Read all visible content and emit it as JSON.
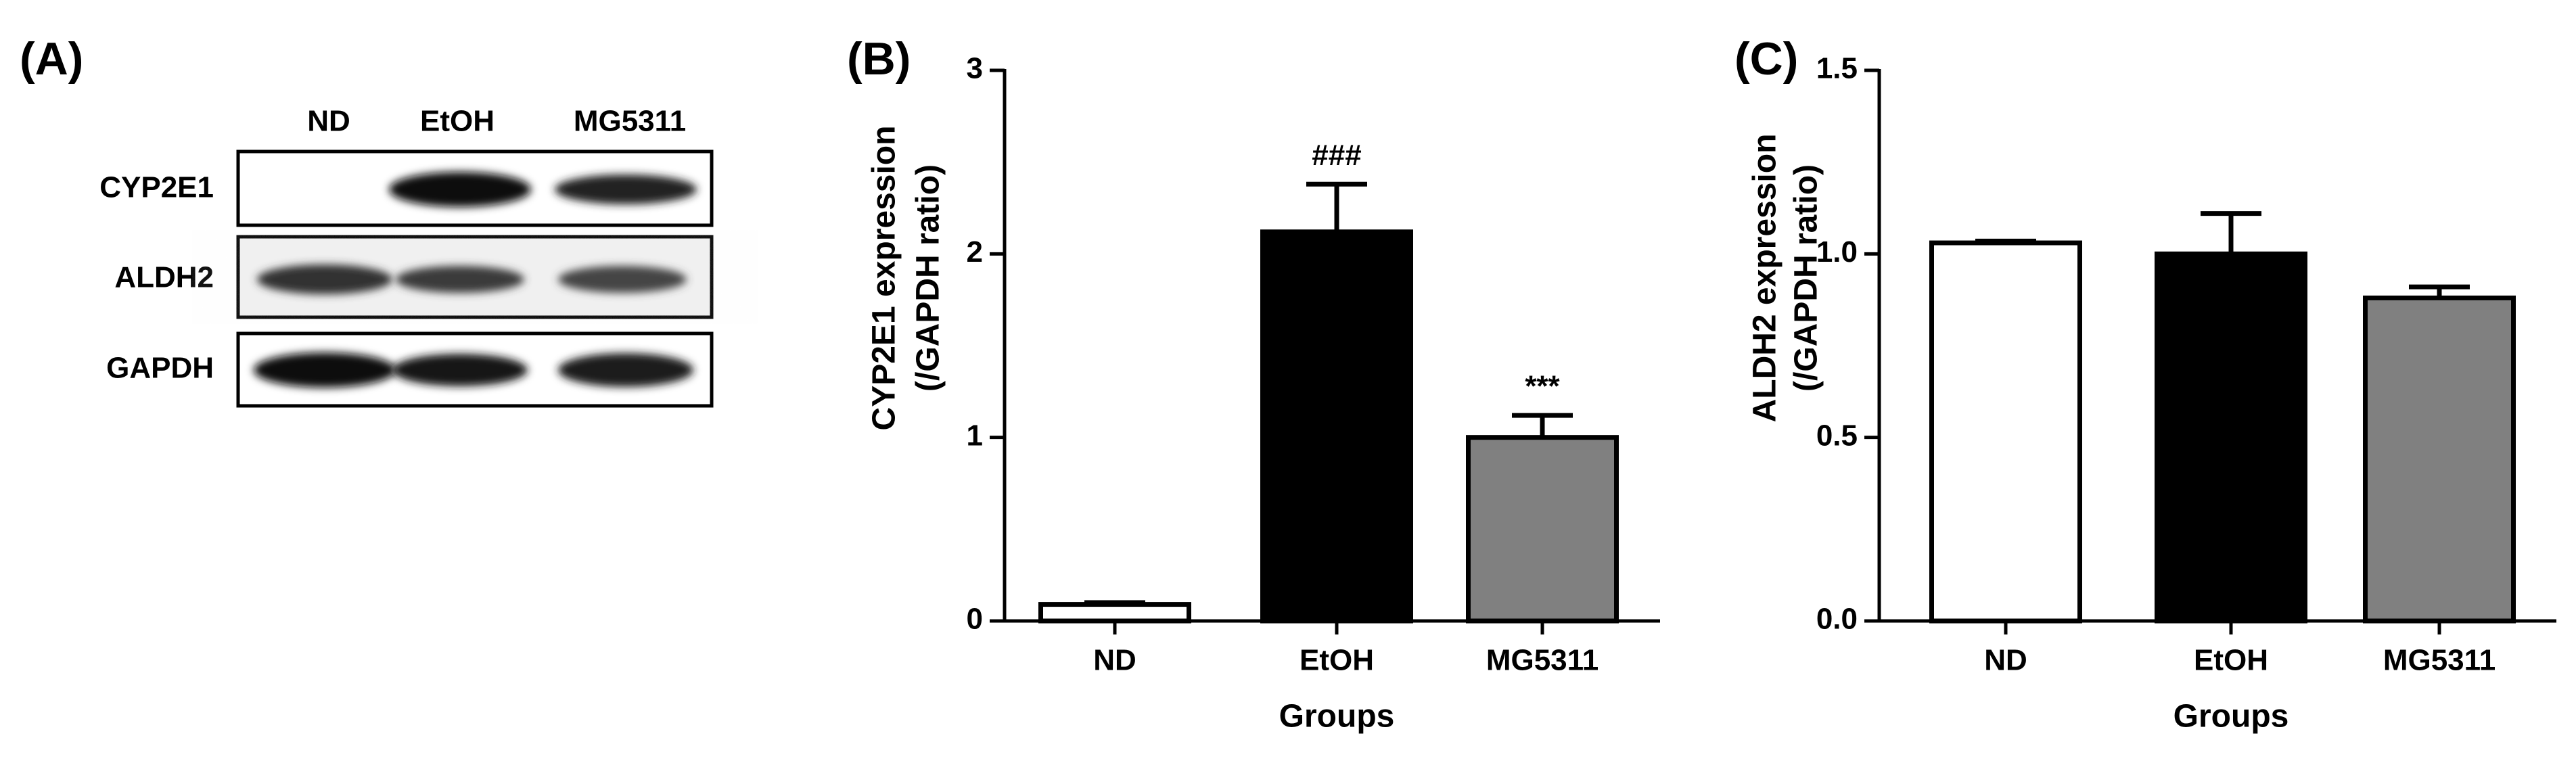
{
  "blot": {
    "panel_label": "(A)",
    "lanes": [
      "ND",
      "EtOH",
      "MG5311"
    ],
    "rows": [
      "CYP2E1",
      "ALDH2",
      "GAPDH"
    ]
  },
  "chart_data": [
    {
      "type": "bar",
      "panel_label": "(B)",
      "ylabel": [
        "CYP2E1 expression",
        "(/GAPDH ratio)"
      ],
      "xlabel": "Groups",
      "categories": [
        "ND",
        "EtOH",
        "MG5311"
      ],
      "values": [
        0.09,
        2.12,
        1.0
      ],
      "errors": [
        0.01,
        0.26,
        0.12
      ],
      "colors": [
        "#ffffff",
        "#000000",
        "#808080"
      ],
      "annotations": [
        null,
        "###",
        "***"
      ],
      "ylim": [
        0,
        3
      ],
      "yticks": [
        0,
        1,
        2,
        3
      ]
    },
    {
      "type": "bar",
      "panel_label": "(C)",
      "ylabel": [
        "ALDH2 expression",
        "(/GAPDH ratio)"
      ],
      "xlabel": "Groups",
      "categories": [
        "ND",
        "EtOH",
        "MG5311"
      ],
      "values": [
        1.03,
        1.0,
        0.88
      ],
      "errors": [
        0.005,
        0.11,
        0.03
      ],
      "colors": [
        "#ffffff",
        "#000000",
        "#808080"
      ],
      "ylim": [
        0,
        1.5
      ],
      "yticks": [
        {
          "value": 0,
          "label": "0.0"
        },
        0.5,
        {
          "value": 1,
          "label": "1.0"
        },
        1.5
      ]
    }
  ]
}
